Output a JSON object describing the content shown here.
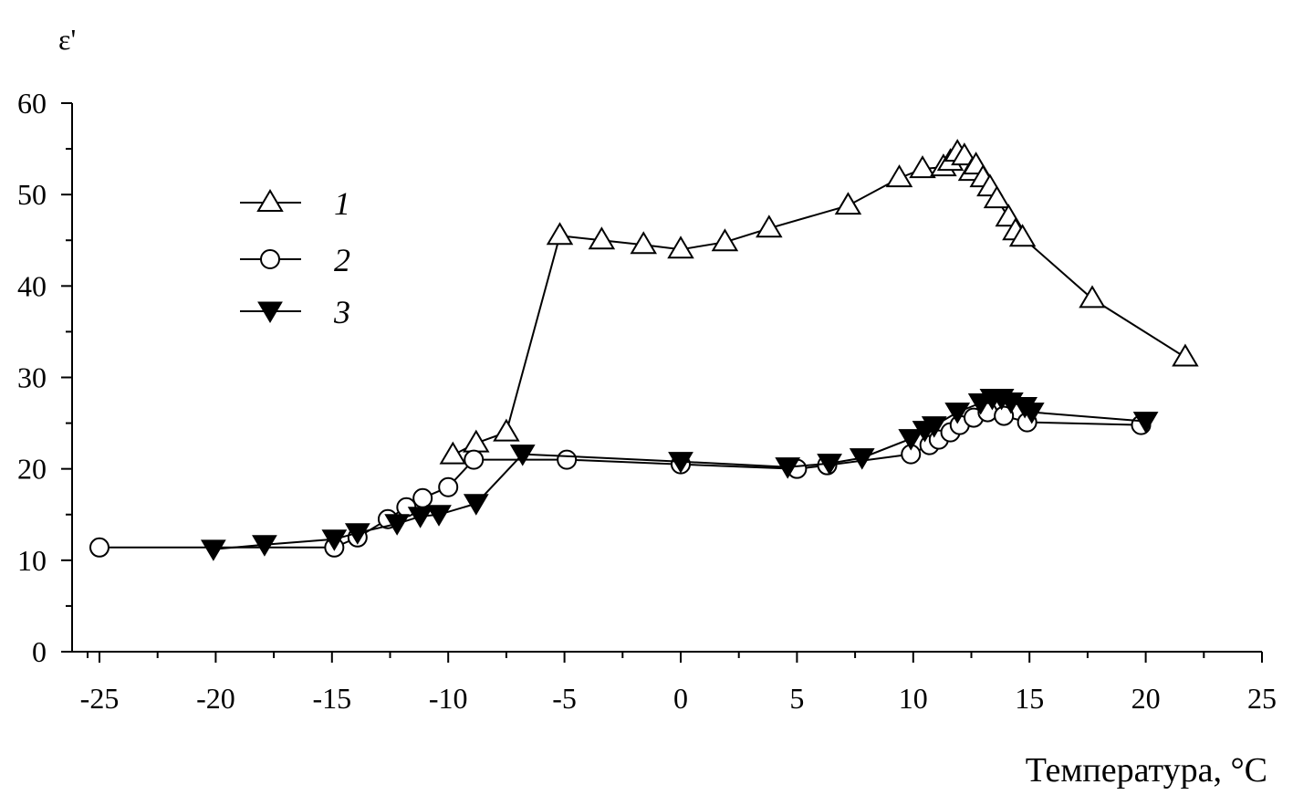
{
  "chart_data": {
    "type": "line",
    "title": "",
    "xlabel": "Температура, °C",
    "ylabel": "ε'",
    "xlim": [
      -25,
      25
    ],
    "ylim": [
      0,
      60
    ],
    "xticks": [
      -25,
      -20,
      -15,
      -10,
      -5,
      0,
      5,
      10,
      15,
      20,
      25
    ],
    "yticks": [
      0,
      10,
      20,
      30,
      40,
      50,
      60
    ],
    "xtick_labels": [
      "-25",
      "-20",
      "-15",
      "-10",
      "-5",
      "0",
      "5",
      "10",
      "15",
      "20",
      "25"
    ],
    "ytick_labels": [
      "0",
      "10",
      "20",
      "30",
      "40",
      "50",
      "60"
    ],
    "grid": false,
    "legend_position": "top-left",
    "series": [
      {
        "name": "1",
        "marker": "triangle-up-open",
        "points": [
          [
            -9.8,
            21.5
          ],
          [
            -8.8,
            22.8
          ],
          [
            -7.5,
            24.0
          ],
          [
            -5.2,
            45.5
          ],
          [
            -3.4,
            45.0
          ],
          [
            -1.6,
            44.5
          ],
          [
            0.0,
            44.0
          ],
          [
            1.9,
            44.8
          ],
          [
            3.8,
            46.3
          ],
          [
            7.2,
            48.8
          ],
          [
            9.4,
            51.8
          ],
          [
            10.4,
            52.8
          ],
          [
            11.3,
            53.0
          ],
          [
            11.6,
            53.6
          ],
          [
            11.9,
            54.6
          ],
          [
            12.2,
            54.2
          ],
          [
            12.5,
            52.5
          ],
          [
            12.7,
            53.2
          ],
          [
            13.0,
            51.8
          ],
          [
            13.3,
            50.8
          ],
          [
            13.6,
            49.5
          ],
          [
            14.1,
            47.5
          ],
          [
            14.4,
            46.0
          ],
          [
            14.7,
            45.3
          ],
          [
            17.7,
            38.6
          ],
          [
            21.7,
            32.2
          ]
        ]
      },
      {
        "name": "2",
        "marker": "circle-open",
        "points": [
          [
            -25.0,
            11.4
          ],
          [
            -14.9,
            11.4
          ],
          [
            -13.9,
            12.5
          ],
          [
            -12.6,
            14.5
          ],
          [
            -11.8,
            15.8
          ],
          [
            -11.1,
            16.8
          ],
          [
            -10.0,
            18.0
          ],
          [
            -8.9,
            21.0
          ],
          [
            -4.9,
            21.0
          ],
          [
            0.0,
            20.5
          ],
          [
            5.0,
            20.0
          ],
          [
            6.3,
            20.4
          ],
          [
            9.9,
            21.6
          ],
          [
            10.7,
            22.6
          ],
          [
            11.1,
            23.2
          ],
          [
            11.6,
            24.0
          ],
          [
            12.0,
            24.8
          ],
          [
            12.6,
            25.6
          ],
          [
            13.2,
            26.2
          ],
          [
            13.9,
            25.8
          ],
          [
            14.9,
            25.1
          ],
          [
            19.8,
            24.8
          ]
        ]
      },
      {
        "name": "3",
        "marker": "triangle-down-filled",
        "points": [
          [
            -20.1,
            11.2
          ],
          [
            -17.9,
            11.7
          ],
          [
            -14.9,
            12.3
          ],
          [
            -13.9,
            13.0
          ],
          [
            -12.2,
            14.0
          ],
          [
            -11.2,
            14.8
          ],
          [
            -10.4,
            15.0
          ],
          [
            -8.8,
            16.2
          ],
          [
            -6.8,
            21.6
          ],
          [
            0.0,
            20.8
          ],
          [
            4.6,
            20.2
          ],
          [
            6.4,
            20.6
          ],
          [
            7.8,
            21.2
          ],
          [
            9.9,
            23.3
          ],
          [
            10.5,
            24.2
          ],
          [
            10.9,
            24.7
          ],
          [
            11.9,
            26.2
          ],
          [
            12.9,
            27.2
          ],
          [
            13.4,
            27.7
          ],
          [
            13.8,
            27.7
          ],
          [
            14.2,
            27.3
          ],
          [
            14.8,
            26.8
          ],
          [
            15.1,
            26.2
          ],
          [
            20.0,
            25.2
          ]
        ]
      }
    ]
  }
}
